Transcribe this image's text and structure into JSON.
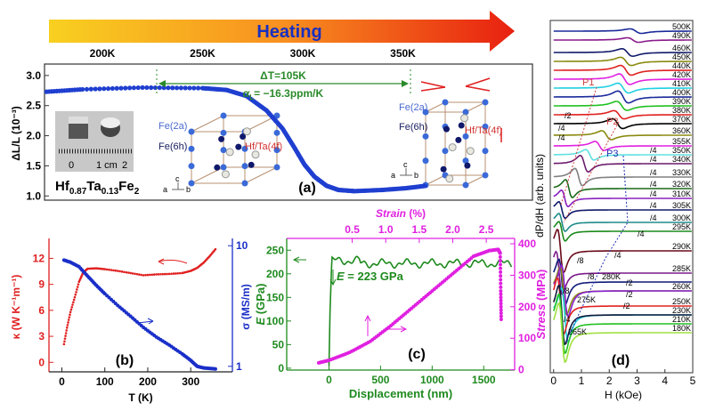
{
  "heating": {
    "label": "Heating",
    "ticks": [
      "200K",
      "250K",
      "300K",
      "350K"
    ],
    "tick_values": [
      200,
      250,
      300,
      350
    ]
  },
  "chart_data": [
    {
      "id": "a",
      "type": "scatter",
      "panel_label": "(a)",
      "ylabel": "ΔL/L (10⁻³)",
      "yticks": [
        1.0,
        1.5,
        2.0,
        2.5,
        3.0
      ],
      "ylim": [
        0.93,
        3.19
      ],
      "xlim": [
        171,
        415
      ],
      "x_unit": "K",
      "color": "#1f3fd0",
      "points": [
        [
          172,
          2.73
        ],
        [
          190,
          2.77
        ],
        [
          220,
          2.8
        ],
        [
          250,
          2.79
        ],
        [
          262,
          2.76
        ],
        [
          272,
          2.66
        ],
        [
          282,
          2.42
        ],
        [
          290,
          2.12
        ],
        [
          296,
          1.8
        ],
        [
          301,
          1.52
        ],
        [
          306,
          1.32
        ],
        [
          312,
          1.17
        ],
        [
          318,
          1.1
        ],
        [
          326,
          1.08
        ],
        [
          340,
          1.1
        ],
        [
          352,
          1.13
        ],
        [
          362,
          1.17
        ]
      ],
      "annotations": {
        "delta_t": "ΔT=105K",
        "alpha": "α",
        "alpha_sub": "L",
        "alpha_val": "= −16.3ppm/K",
        "span": [
          220,
          325
        ]
      },
      "inset": {
        "compound_parts": [
          "Hf",
          "0.87",
          "Ta",
          "0.13",
          "Fe",
          "2"
        ],
        "ruler_labels": [
          "0",
          "1 cm",
          "2"
        ]
      },
      "structure_labels": {
        "fe2a": "Fe(2a)",
        "fe6h": "Fe(6h)",
        "hfta": "Hf/Ta(4f)",
        "c": "c",
        "a": "a",
        "b": "b"
      }
    },
    {
      "id": "b",
      "type": "scatter",
      "panel_label": "(b)",
      "xlabel": "T (K)",
      "xticks": [
        0,
        100,
        200,
        300
      ],
      "xlim": [
        -30,
        397
      ],
      "ylabel_left": "κ (W K⁻¹m⁻¹)",
      "yticks_left": [
        0,
        3,
        6,
        9,
        12
      ],
      "ylim_left": [
        -1.1,
        14.3
      ],
      "ylabel_right": "σ (MS/m)",
      "yticks_right": [
        1,
        10
      ],
      "yscale_right": "log",
      "ylim_right": [
        0.9,
        11.5
      ],
      "series": [
        {
          "name": "κ",
          "axis": "left",
          "color": "#e02020",
          "points": [
            [
              5,
              2.1
            ],
            [
              12,
              4
            ],
            [
              20,
              5.8
            ],
            [
              30,
              7.5
            ],
            [
              40,
              9.3
            ],
            [
              50,
              10.4
            ],
            [
              60,
              10.8
            ],
            [
              80,
              10.85
            ],
            [
              100,
              10.75
            ],
            [
              130,
              10.55
            ],
            [
              160,
              10.3
            ],
            [
              190,
              10.05
            ],
            [
              220,
              10.15
            ],
            [
              250,
              10.2
            ],
            [
              280,
              10.3
            ],
            [
              300,
              10.55
            ],
            [
              315,
              10.9
            ],
            [
              330,
              11.5
            ],
            [
              345,
              12.3
            ],
            [
              360,
              13.2
            ]
          ]
        },
        {
          "name": "σ",
          "axis": "right",
          "color": "#1a2fc8",
          "points": [
            [
              5,
              7.6
            ],
            [
              20,
              7.3
            ],
            [
              40,
              6.7
            ],
            [
              60,
              5.6
            ],
            [
              80,
              4.7
            ],
            [
              100,
              4.0
            ],
            [
              130,
              3.2
            ],
            [
              160,
              2.6
            ],
            [
              190,
              2.1
            ],
            [
              220,
              1.75
            ],
            [
              250,
              1.5
            ],
            [
              280,
              1.27
            ],
            [
              300,
              1.12
            ],
            [
              315,
              1.0
            ],
            [
              330,
              0.97
            ],
            [
              345,
              0.96
            ],
            [
              360,
              0.95
            ]
          ]
        }
      ]
    },
    {
      "id": "c",
      "type": "scatter",
      "panel_label": "(c)",
      "xlabel": "Displacement (nm)",
      "xticks": [
        0,
        500,
        1000,
        1500
      ],
      "xlim": [
        -410,
        1800
      ],
      "x2label_word": "Strain",
      "x2label_unit": " (%)",
      "x2ticks": [
        0.5,
        1.0,
        1.5,
        2.0,
        2.5
      ],
      "ylabel_left_sym": "E",
      "ylabel_left_unit": " (GPa)",
      "yticks_left": [
        0,
        50,
        100,
        150,
        200,
        250
      ],
      "ylim_left": [
        -4,
        275
      ],
      "ylabel_right_word": "Stress",
      "ylabel_right_unit": " (MPa)",
      "yticks_right": [
        0,
        100,
        200,
        300,
        400
      ],
      "ylim_right": [
        -1,
        417
      ],
      "annotation": {
        "sym": "E",
        "val": " = 223 GPa"
      },
      "series": [
        {
          "name": "E",
          "axis": "left",
          "color": "#1e8a1e"
        },
        {
          "name": "Stress",
          "axis": "right",
          "color": "#e020e0",
          "points": [
            [
              -100,
              22
            ],
            [
              0,
              30
            ],
            [
              200,
              55
            ],
            [
              400,
              90
            ],
            [
              600,
              140
            ],
            [
              800,
              195
            ],
            [
              1000,
              250
            ],
            [
              1200,
              305
            ],
            [
              1400,
              360
            ],
            [
              1550,
              378
            ],
            [
              1640,
              382
            ],
            [
              1660,
              370
            ],
            [
              1665,
              250
            ],
            [
              1670,
              150
            ]
          ]
        }
      ]
    },
    {
      "id": "d",
      "type": "line",
      "panel_label": "(d)",
      "xlabel": "H (kOe)",
      "ylabel": "dP/dH (arb. units)",
      "xticks": [
        0,
        1,
        2,
        3,
        4,
        5
      ],
      "xlim": [
        -0.12,
        5
      ],
      "peak_labels": [
        "P1",
        "P2",
        "P3"
      ],
      "curves": [
        {
          "T": "500K",
          "res": 2.95,
          "amp": 0.6,
          "color": "#1a2a9a"
        },
        {
          "T": "490K",
          "res": 2.85,
          "amp": 0.6,
          "color": "#8a1a8a"
        },
        {
          "T": "460K",
          "res": 2.65,
          "amp": 1.0,
          "color": "#101a6a"
        },
        {
          "T": "450K",
          "res": 2.6,
          "amp": 1.1,
          "color": "#8a8a10"
        },
        {
          "T": "440K",
          "res": 2.6,
          "amp": 1.3,
          "color": "#e02020"
        },
        {
          "T": "420K",
          "res": 2.55,
          "amp": 1.4,
          "color": "#e020e0"
        },
        {
          "T": "410K",
          "res": 2.5,
          "amp": 1.3,
          "color": "#20d0e0"
        },
        {
          "T": "400K",
          "res": 2.5,
          "amp": 1.6,
          "color": "#1a2a9a"
        },
        {
          "T": "390K",
          "res": 2.45,
          "amp": 1.2,
          "color": "#20c020"
        },
        {
          "T": "380K",
          "res": 2.35,
          "amp": 1.1,
          "color": "#e02020"
        },
        {
          "T": "370K",
          "res": 2.3,
          "amp": 1.3,
          "color": "#000000",
          "scale": "/2"
        },
        {
          "T": "360K",
          "res": 1.9,
          "amp": 1.2,
          "color": "#8a8a10",
          "scale": "/4"
        },
        {
          "T": "355K",
          "res": 1.65,
          "amp": 1.2,
          "color": "#e020e0",
          "scale": "/4"
        },
        {
          "T": "350K",
          "res": 1.3,
          "amp": 1.4,
          "color": "#60e0e0",
          "scale": "/4"
        },
        {
          "T": "340K",
          "res": 1.1,
          "amp": 2.2,
          "color": "#6a1a6a",
          "scale": "/4"
        },
        {
          "T": "330K",
          "res": 0.9,
          "amp": 2.3,
          "color": "#808080",
          "scale": "/4"
        },
        {
          "T": "320K",
          "res": 0.55,
          "amp": 2.4,
          "color": "#1a6a1a",
          "scale": "/4"
        },
        {
          "T": "310K",
          "res": 0.4,
          "amp": 2.2,
          "color": "#8a20c0",
          "scale": "/4"
        },
        {
          "T": "305K",
          "res": 0.3,
          "amp": 2.2,
          "color": "#101a6a",
          "scale": "/4"
        },
        {
          "T": "300K",
          "res": 0.3,
          "amp": 2.4,
          "color": "#208a8a",
          "scale": "/4"
        },
        {
          "T": "295K",
          "res": 0.3,
          "amp": 2.6,
          "color": "#1a8a1a",
          "scale": "/4"
        },
        {
          "T": "290K",
          "res": 0.25,
          "amp": 3.2,
          "color": "#6a0a1a",
          "scale": "/4"
        },
        {
          "T": "285K",
          "res": 0.2,
          "amp": 3.2,
          "color": "#7a1a8a",
          "scale": "/8"
        },
        {
          "T": "280K",
          "res": 0.3,
          "amp": 3.4,
          "color": "#101a7a",
          "scale": "/8"
        },
        {
          "T": "275K",
          "res": 0.35,
          "amp": 3.6,
          "color": "#8a8a10",
          "scale": "/8"
        },
        {
          "T": "260K",
          "res": 0.4,
          "amp": 3.8,
          "color": "#8a20d0",
          "scale": "/2"
        },
        {
          "T": "265K",
          "res": 0.4,
          "amp": 4.0,
          "color": "#20d0e0",
          "scale": "/4"
        },
        {
          "T": "250K",
          "res": 0.25,
          "amp": 4.2,
          "color": "#e02020",
          "scale": "/2"
        },
        {
          "T": "230K",
          "res": 0.3,
          "amp": 4.4,
          "color": "#101a3a",
          "scale": "/2"
        },
        {
          "T": "210K",
          "res": 0.3,
          "amp": 4.4,
          "color": "#20c020"
        },
        {
          "T": "180K",
          "res": 0.3,
          "amp": 4.4,
          "color": "#a0e040"
        }
      ]
    }
  ]
}
